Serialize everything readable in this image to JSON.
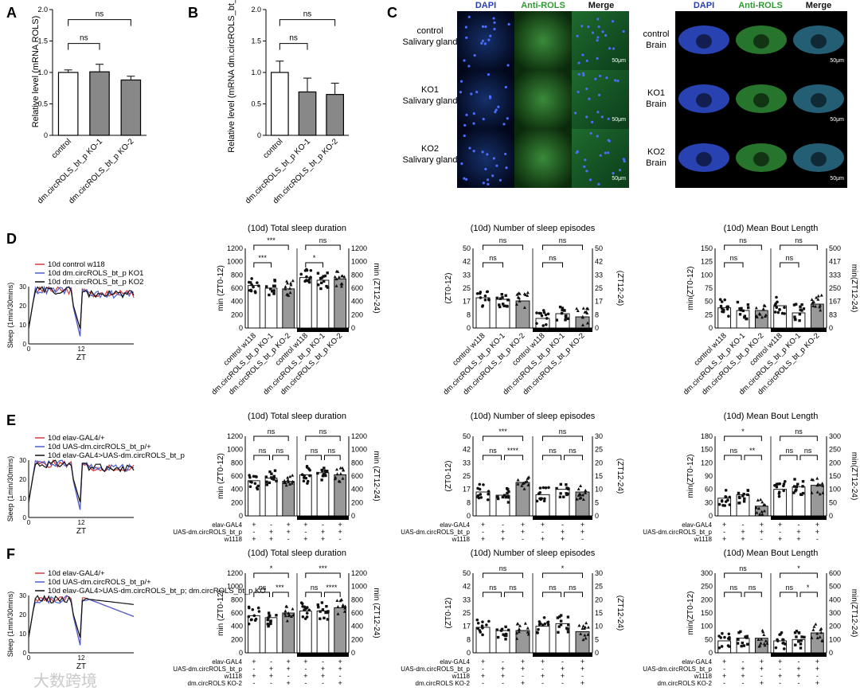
{
  "panel_labels": {
    "A": "A",
    "B": "B",
    "C": "C",
    "D": "D",
    "E": "E",
    "F": "F"
  },
  "watermark": "大数跨境",
  "panelA": {
    "ylabel": "Relative level (mRNA ROLS)",
    "categories": [
      "control",
      "dm.circROLS_bt_p KO-1",
      "dm.circROLS_bt_p KO-2"
    ],
    "values": [
      1.0,
      1.01,
      0.88
    ],
    "errors": [
      0.04,
      0.12,
      0.06
    ],
    "ylim": [
      0,
      2.0
    ],
    "yticks": [
      "0",
      "0.5",
      "1.0",
      "1.5",
      "2.0"
    ],
    "sig": [
      "ns",
      "ns"
    ]
  },
  "panelB": {
    "ylabel": "Relative level (mRNA dm.circROLS_bt_p)",
    "categories": [
      "control",
      "dm.circROLS_bt_p KO-1",
      "dm.circROLS_bt_p KO-2"
    ],
    "values": [
      1.0,
      0.69,
      0.65
    ],
    "errors": [
      0.18,
      0.22,
      0.18
    ],
    "ylim": [
      0,
      2.0
    ],
    "yticks": [
      "0",
      "0.5",
      "1.0",
      "1.5",
      "2.0"
    ],
    "sig": [
      "ns",
      "ns"
    ]
  },
  "panelC": {
    "col_headers": [
      "DAPI",
      "Anti-ROLS",
      "Merge"
    ],
    "left_rows": [
      "control Salivary gland",
      "KO1 Salivary gland",
      "KO2 Salivary gland"
    ],
    "right_rows": [
      "control Brain",
      "KO1 Brain",
      "KO2 Brain"
    ],
    "scale": "50μm"
  },
  "rowD": {
    "legend": [
      "10d control w118",
      "10d dm.circROLS_bt_p KO1",
      "10d dm.circROLS_bt_p KO2"
    ],
    "ylabel": "Sleep (1min/30mins)",
    "xlabel": "ZT",
    "titles": [
      "(10d) Total sleep duration",
      "(10d) Number of sleep episodes",
      "(10d) Mean Bout Length"
    ],
    "ylabels_left": [
      "min (ZT0-12)",
      "(ZT0-12)",
      "min(ZT0-12)"
    ],
    "ylabels_right": [
      "min (ZT12-24)",
      "(ZT12-24)",
      "min(ZT12-24)"
    ],
    "xcats": [
      "control w118",
      "dm.circROLS_bt_p KO-1",
      "dm.circROLS_bt_p KO-2",
      "control w118",
      "dm.circROLS_bt_p KO-1",
      "dm.circROLS_bt_p KO-2"
    ]
  },
  "rowE": {
    "legend": [
      "10d elav-GAL4/+",
      "10d UAS-dm.circROLS_bt_p/+",
      "10d elav-GAL4>UAS-dm.circROLS_bt_p"
    ],
    "titles": [
      "(10d) Total sleep duration",
      "(10d) Number of sleep episodes",
      "(10d) Mean Bout Length"
    ],
    "geno_rows": [
      "elav-GAL4",
      "UAS-dm.circROLS_bt_p",
      "w1118"
    ]
  },
  "rowF": {
    "legend": [
      "10d elav-GAL4/+",
      "10d UAS-dm.circROLS_bt_p/+",
      "10d elav-GAL4>UAS-dm.circROLS_bt_p; dm.circROLS_bt_p KO"
    ],
    "titles": [
      "(10d) Total sleep duration",
      "(10d) Number of sleep episodes",
      "(10d) Mean Bout Length"
    ],
    "geno_rows": [
      "elav-GAL4",
      "UAS-dm.circROLS_bt_p",
      "w1118",
      "dm.circROLS KO-2"
    ]
  },
  "chart_data": [
    {
      "panel": "A",
      "type": "bar",
      "categories": [
        "control",
        "dm.circROLS_bt_p KO-1",
        "dm.circROLS_bt_p KO-2"
      ],
      "values": [
        1.0,
        1.01,
        0.88
      ],
      "ylabel": "Relative level (mRNA ROLS)",
      "ylim": [
        0,
        2.0
      ]
    },
    {
      "panel": "B",
      "type": "bar",
      "categories": [
        "control",
        "dm.circROLS_bt_p KO-1",
        "dm.circROLS_bt_p KO-2"
      ],
      "values": [
        1.0,
        0.69,
        0.65
      ],
      "ylabel": "Relative level (mRNA dm.circROLS_bt_p)",
      "ylim": [
        0,
        2.0
      ]
    },
    {
      "panel": "D-total",
      "type": "bar",
      "title": "(10d) Total sleep duration",
      "left_ylim": [
        0,
        1200
      ],
      "right_ylim": [
        0,
        1200
      ],
      "left_values": [
        640,
        600,
        590
      ],
      "right_values": [
        760,
        720,
        740
      ],
      "sig_left": [
        "***",
        "***"
      ],
      "sig_right": [
        "*",
        "ns"
      ]
    },
    {
      "panel": "D-episodes",
      "type": "bar",
      "title": "(10d) Number of sleep episodes",
      "left_ylim": [
        0,
        50
      ],
      "right_ylim": [
        0,
        50
      ],
      "left_values": [
        19,
        18,
        17
      ],
      "right_values": [
        6,
        9,
        7
      ],
      "sig_left": [
        "ns",
        "ns"
      ],
      "sig_right": [
        "ns",
        "ns"
      ]
    },
    {
      "panel": "D-bout",
      "type": "bar",
      "title": "(10d) Mean Bout Length",
      "left_ylim": [
        0,
        150
      ],
      "right_ylim": [
        0,
        500
      ],
      "left_values": [
        38,
        33,
        33
      ],
      "right_values": [
        140,
        95,
        150
      ],
      "sig_left": [
        "ns",
        "ns"
      ],
      "sig_right": [
        "ns",
        "ns"
      ]
    },
    {
      "panel": "E-total",
      "type": "bar",
      "title": "(10d) Total sleep duration",
      "left_ylim": [
        0,
        1200
      ],
      "right_ylim": [
        0,
        1200
      ],
      "left_values": [
        530,
        570,
        520
      ],
      "right_values": [
        620,
        650,
        620
      ],
      "sig_left": [
        "ns",
        "ns",
        "ns"
      ],
      "sig_right": [
        "ns",
        "ns",
        "ns"
      ]
    },
    {
      "panel": "E-episodes",
      "type": "bar",
      "title": "(10d) Number of sleep episodes",
      "left_ylim": [
        0,
        50
      ],
      "right_ylim": [
        0,
        30
      ],
      "left_values": [
        15,
        13,
        21
      ],
      "right_values": [
        8,
        10,
        9
      ],
      "sig_left": [
        "ns",
        "****",
        "***"
      ],
      "sig_right": [
        "ns",
        "ns",
        "ns"
      ]
    },
    {
      "panel": "E-bout",
      "type": "bar",
      "title": "(10d) Mean Bout Length",
      "left_ylim": [
        0,
        180
      ],
      "right_ylim": [
        0,
        300
      ],
      "left_values": [
        40,
        48,
        22
      ],
      "right_values": [
        100,
        110,
        115
      ],
      "sig_left": [
        "ns",
        "**",
        "*"
      ],
      "sig_right": [
        "ns",
        "ns",
        "ns"
      ]
    },
    {
      "panel": "F-total",
      "type": "bar",
      "title": "(10d) Total sleep duration",
      "left_ylim": [
        0,
        1200
      ],
      "right_ylim": [
        0,
        1200
      ],
      "left_values": [
        560,
        530,
        600
      ],
      "right_values": [
        630,
        630,
        680
      ],
      "sig_left": [
        "ns",
        "***",
        "*"
      ],
      "sig_right": [
        "ns",
        "****",
        "***"
      ]
    },
    {
      "panel": "F-episodes",
      "type": "bar",
      "title": "(10d) Number of sleep episodes",
      "left_ylim": [
        0,
        50
      ],
      "right_ylim": [
        0,
        30
      ],
      "left_values": [
        16,
        14,
        14
      ],
      "right_values": [
        10,
        11,
        8
      ],
      "sig_left": [
        "ns",
        "ns",
        "ns"
      ],
      "sig_right": [
        "ns",
        "ns",
        "*"
      ]
    },
    {
      "panel": "F-bout",
      "type": "bar",
      "title": "(10d) Mean Bout Length",
      "left_ylim": [
        0,
        300
      ],
      "right_ylim": [
        0,
        600
      ],
      "left_values": [
        45,
        55,
        55
      ],
      "right_values": [
        90,
        100,
        150
      ],
      "sig_left": [
        "ns",
        "ns",
        "ns"
      ],
      "sig_right": [
        "ns",
        "*",
        "*"
      ]
    }
  ]
}
